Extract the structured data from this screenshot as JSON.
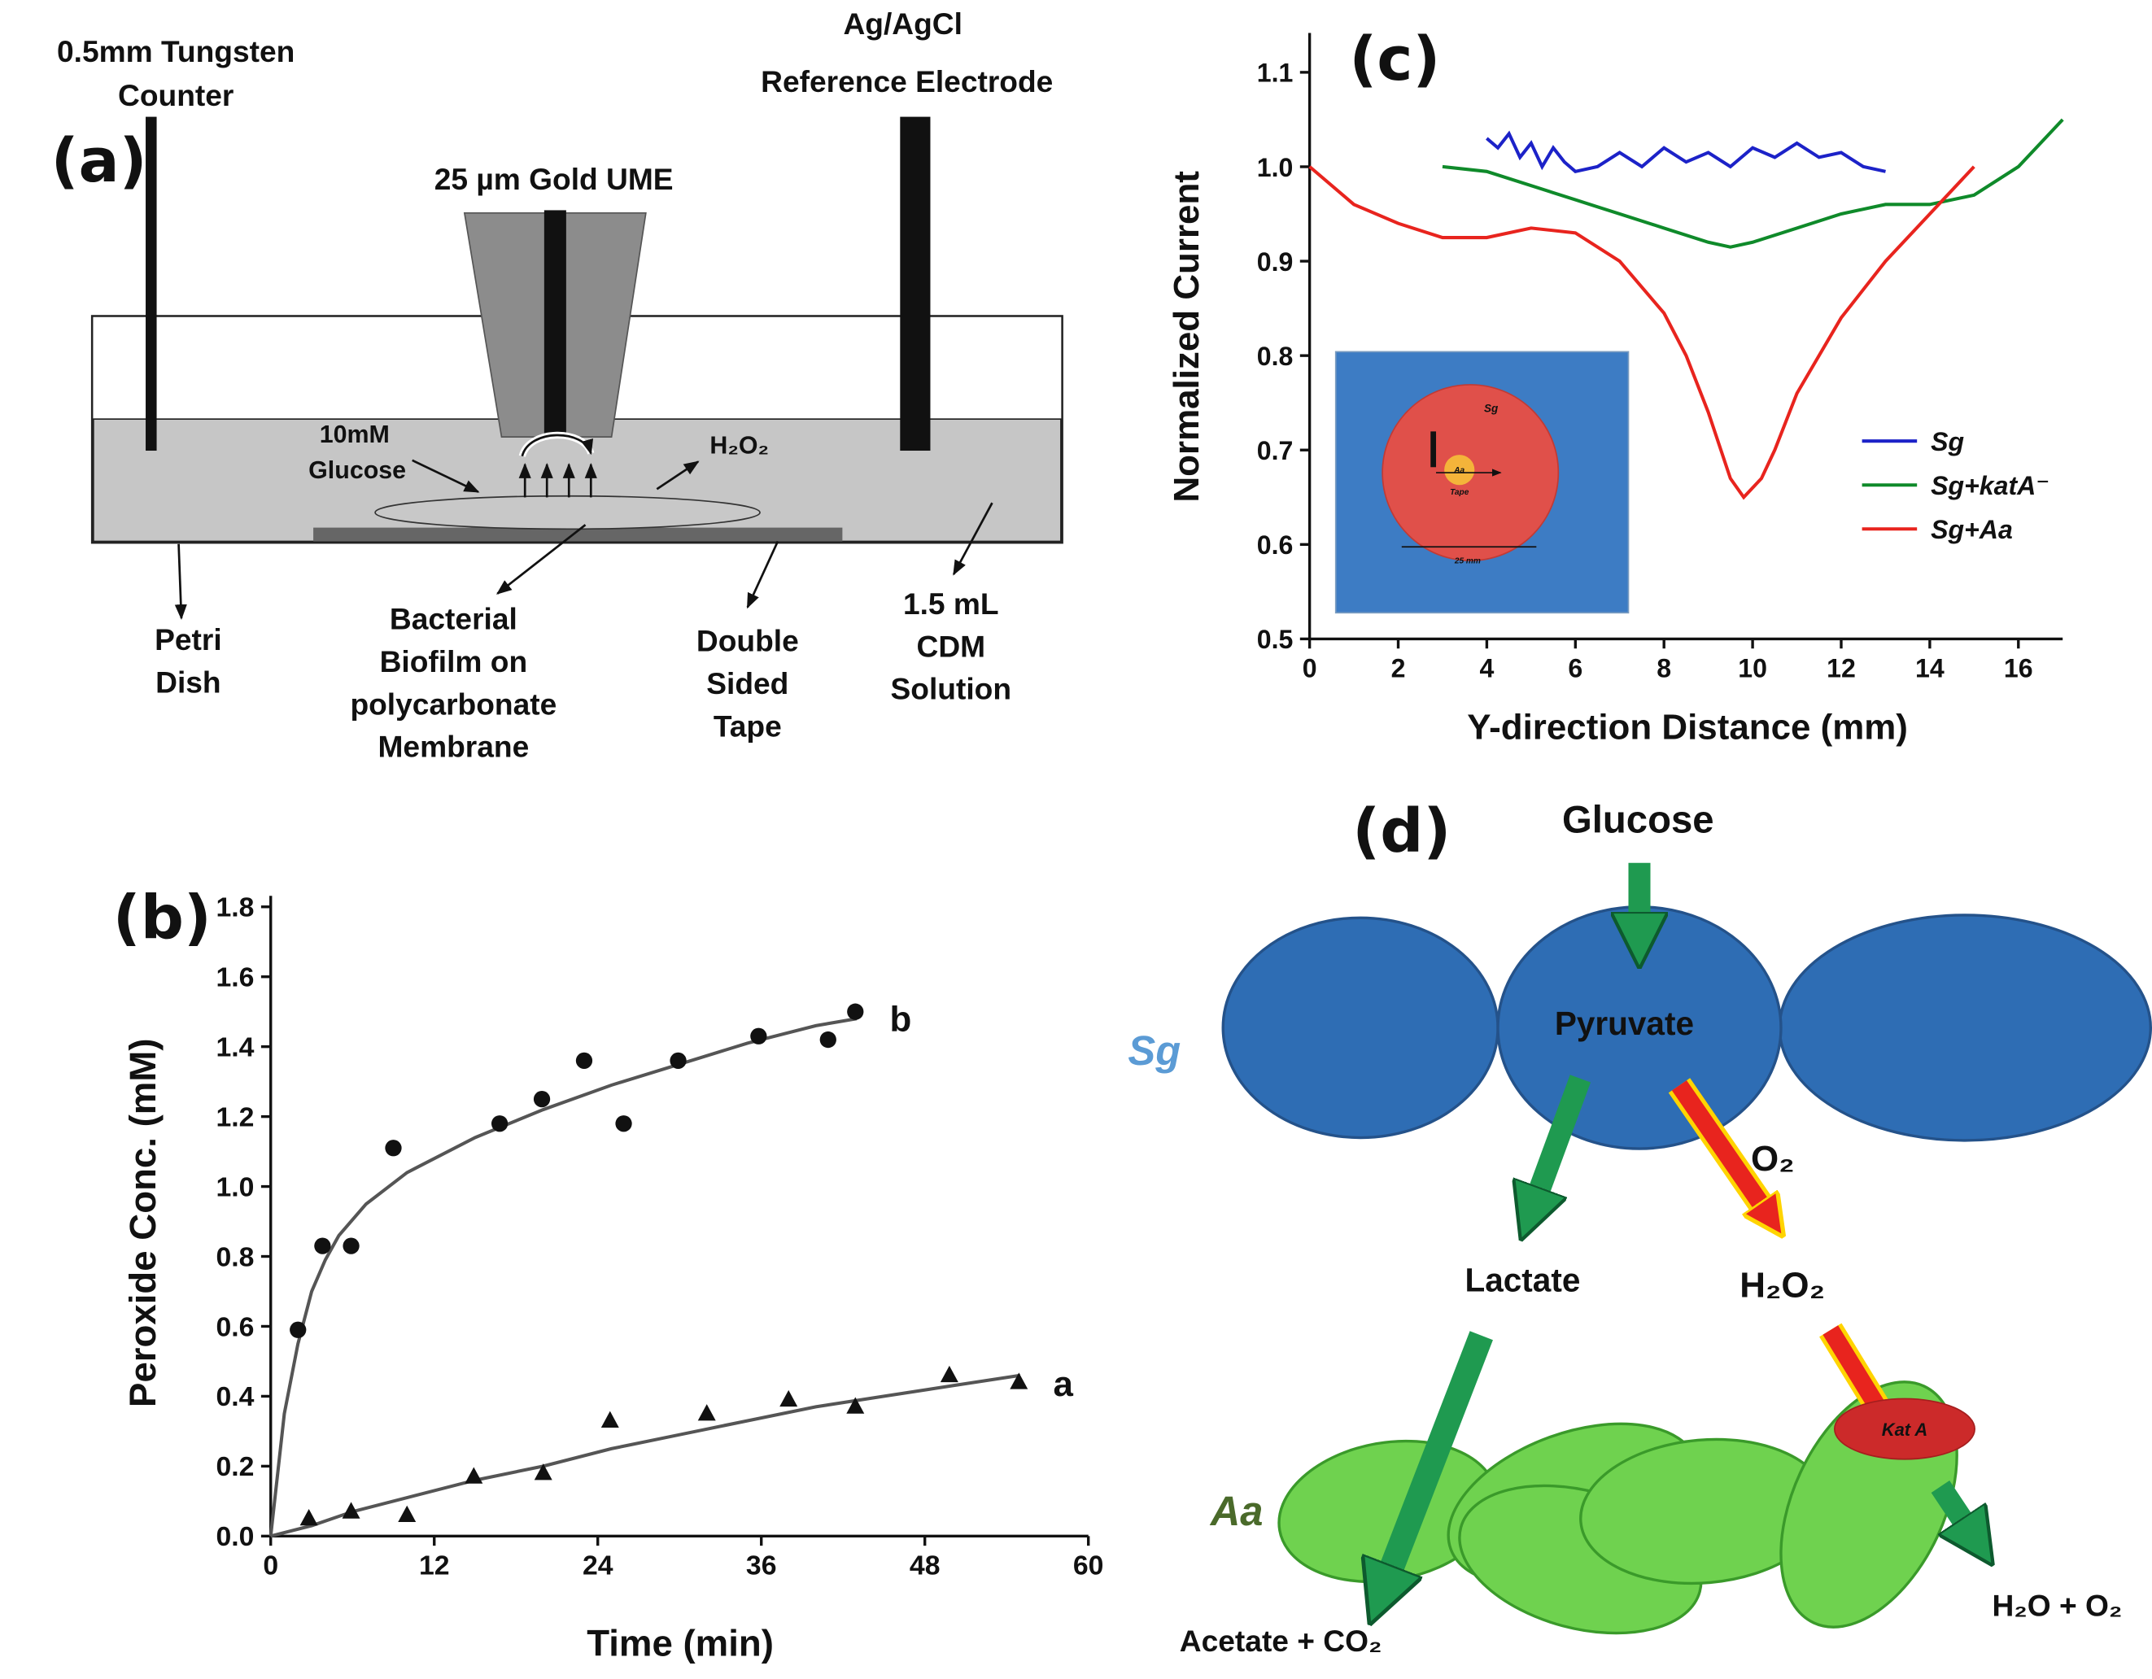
{
  "chart_data": [
    {
      "type": "line",
      "panel_label": "(c)",
      "xlabel": "Y-direction Distance (mm)",
      "ylabel": "Normalized Current",
      "xlim": [
        0,
        17
      ],
      "ylim": [
        0.5,
        1.13
      ],
      "xticks": [
        0,
        2,
        4,
        6,
        8,
        10,
        12,
        14,
        16
      ],
      "yticks": [
        0.5,
        0.6,
        0.7,
        0.8,
        0.9,
        {
          "value": 1.0,
          "label": "1.0"
        },
        1.1
      ],
      "legend": "right",
      "series": [
        {
          "name": "Sg",
          "color": "#1c22c8",
          "x": [
            4,
            4.25,
            4.5,
            4.75,
            5,
            5.25,
            5.5,
            5.75,
            6,
            6.5,
            7,
            7.5,
            8,
            8.5,
            9,
            9.5,
            10,
            10.5,
            11,
            11.5,
            12,
            12.5,
            13
          ],
          "values": [
            1.03,
            1.02,
            1.035,
            1.01,
            1.025,
            1.0,
            1.02,
            1.005,
            0.995,
            1.0,
            1.015,
            1.0,
            1.02,
            1.005,
            1.015,
            1.0,
            1.02,
            1.01,
            1.025,
            1.01,
            1.015,
            1.0,
            0.995
          ]
        },
        {
          "name": "Sg+katA⁻",
          "color": "#0f8a2a",
          "x": [
            3,
            4,
            5,
            6,
            7,
            8,
            9,
            9.5,
            10,
            11,
            12,
            13,
            14,
            15,
            16,
            17
          ],
          "values": [
            1.0,
            0.995,
            0.98,
            0.965,
            0.95,
            0.935,
            0.92,
            0.915,
            0.92,
            0.935,
            0.95,
            0.96,
            0.96,
            0.97,
            1.0,
            1.05
          ]
        },
        {
          "name": "Sg+Aa",
          "color": "#e8241e",
          "x": [
            0,
            1,
            2,
            3,
            4,
            5,
            6,
            7,
            8,
            8.5,
            9,
            9.5,
            9.8,
            10.2,
            10.5,
            11,
            12,
            13,
            14,
            15
          ],
          "values": [
            1.0,
            0.96,
            0.94,
            0.925,
            0.925,
            0.935,
            0.93,
            0.9,
            0.845,
            0.8,
            0.74,
            0.67,
            0.65,
            0.67,
            0.7,
            0.76,
            0.84,
            0.9,
            0.95,
            1.0
          ]
        }
      ],
      "inset_labels": [
        "Sg",
        "Aa",
        "Tape",
        "25 mm"
      ]
    },
    {
      "type": "scatter",
      "panel_label": "(b)",
      "xlabel": "Time (min)",
      "ylabel": "Peroxide Conc. (mM)",
      "xlim": [
        0,
        60
      ],
      "ylim": [
        0,
        1.8
      ],
      "xticks": [
        0,
        12,
        24,
        36,
        48,
        60
      ],
      "yticks": [
        {
          "value": 0,
          "label": "0.0"
        },
        0.2,
        0.4,
        0.6,
        0.8,
        {
          "value": 1.0,
          "label": "1.0"
        },
        1.2,
        1.4,
        1.6,
        1.8
      ],
      "series": [
        {
          "name": "b",
          "marker": "circle",
          "color": "#111111",
          "x": [
            2.0,
            3.8,
            5.9,
            9.0,
            16.8,
            19.9,
            23.0,
            25.9,
            29.9,
            35.8,
            40.9,
            42.9
          ],
          "values": [
            0.59,
            0.83,
            0.83,
            1.11,
            1.18,
            1.25,
            1.36,
            1.18,
            1.36,
            1.43,
            1.42,
            1.5
          ],
          "fit_x": [
            0,
            1,
            2,
            3,
            4,
            5,
            7,
            10,
            15,
            20,
            25,
            30,
            35,
            40,
            43
          ],
          "fit_values": [
            0,
            0.35,
            0.55,
            0.7,
            0.79,
            0.86,
            0.95,
            1.04,
            1.14,
            1.22,
            1.29,
            1.35,
            1.41,
            1.46,
            1.48
          ]
        },
        {
          "name": "a",
          "marker": "triangle",
          "color": "#111111",
          "x": [
            2.8,
            5.9,
            10.0,
            14.9,
            20.0,
            24.9,
            32.0,
            38.0,
            42.9,
            49.8,
            54.9
          ],
          "values": [
            0.05,
            0.07,
            0.06,
            0.17,
            0.18,
            0.33,
            0.35,
            0.39,
            0.37,
            0.46,
            0.44
          ],
          "fit_x": [
            0,
            3,
            6,
            10,
            15,
            20,
            25,
            30,
            35,
            40,
            45,
            50,
            55
          ],
          "fit_values": [
            0,
            0.03,
            0.07,
            0.11,
            0.16,
            0.2,
            0.25,
            0.29,
            0.33,
            0.37,
            0.4,
            0.43,
            0.46
          ]
        }
      ]
    }
  ],
  "diagram_a": {
    "panel_label": "(a)",
    "counter": [
      "0.5mm Tungsten",
      "Counter"
    ],
    "reference": [
      "Ag/AgCl",
      "Reference Electrode"
    ],
    "ume": "25 µm Gold UME",
    "glucose": [
      "10mM",
      "Glucose"
    ],
    "peroxide": "H₂O₂",
    "dish": [
      "Petri",
      "Dish"
    ],
    "biofilm": [
      "Bacterial",
      "Biofilm on",
      "polycarbonate",
      "Membrane"
    ],
    "tape": [
      "Double",
      "Sided",
      "Tape"
    ],
    "solution": [
      "1.5 mL",
      "CDM",
      "Solution"
    ]
  },
  "diagram_d": {
    "panel_label": "(d)",
    "glucose": "Glucose",
    "pyruvate": "Pyruvate",
    "oxygen": "O₂",
    "lactate": "Lactate",
    "peroxide": "H₂O₂",
    "sg": "Sg",
    "aa": "Aa",
    "kata": "Kat A",
    "acetate": "Acetate + CO₂",
    "water": "H₂O + O₂"
  }
}
